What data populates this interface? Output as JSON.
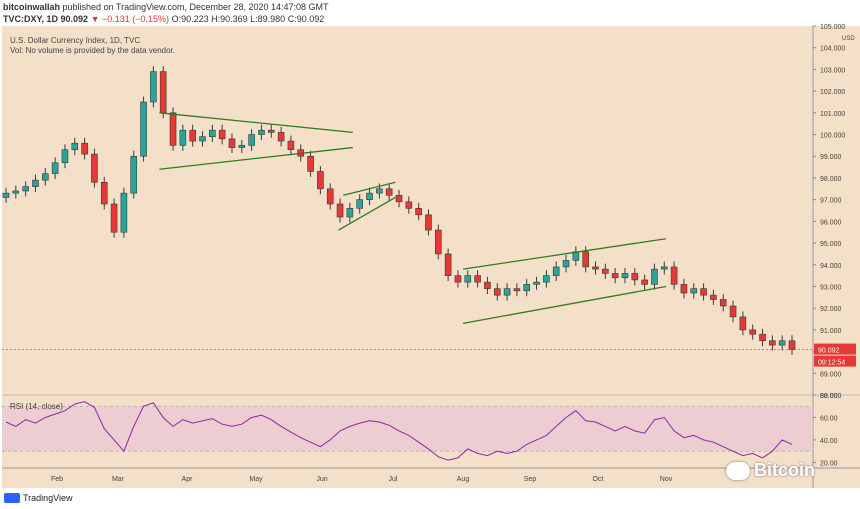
{
  "header": {
    "author": "bitcoinwallah",
    "published": "published on TradingView.com, December 28, 2020 14:47:08 GMT",
    "symbol": "TVC:DXY, 1D",
    "last": "90.092",
    "change": "▼ −0.131 (−0.15%)",
    "open": "O:90.223",
    "high": "H:90.369",
    "low": "L:89.980",
    "close": "C:90.092"
  },
  "legend": {
    "title": "U.S. Dollar Currency Index, 1D, TVC",
    "volume_note": "Vol: No volume is provided by the data vendor."
  },
  "rsi": {
    "label": "RSI (14, close)"
  },
  "price_tag": {
    "price": "90.092",
    "countdown": "09:12:54"
  },
  "footer": {
    "brand": "TradingView"
  },
  "watermark": {
    "text": "Bitcoin"
  },
  "colors": {
    "background": "#f4dfc9",
    "up": "#26a69a",
    "down": "#e53935",
    "candle": "#3a3a3a",
    "trendline": "#2e7d1e",
    "rsi_line": "#8e24aa",
    "rsi_band": "#e8c4d4",
    "price_tag": "#e53935"
  },
  "chart_data": [
    {
      "type": "candlestick",
      "title": "U.S. Dollar Currency Index, 1D, TVC",
      "ylabel": "USD",
      "ylim": [
        88,
        105
      ],
      "y_ticks": [
        88,
        89,
        90,
        91,
        92,
        93,
        94,
        95,
        96,
        97,
        98,
        99,
        100,
        101,
        102,
        103,
        104,
        105
      ],
      "y_tick_labels": [
        "88.000",
        "89.000",
        "90.000",
        "91.000",
        "92.000",
        "93.000",
        "94.000",
        "95.000",
        "96.000",
        "97.000",
        "98.000",
        "99.000",
        "100.000",
        "101.000",
        "102.000",
        "103.000",
        "104.000",
        "105.000"
      ],
      "x_tick_labels": [
        "Feb",
        "Mar",
        "Apr",
        "May",
        "Jun",
        "Jul",
        "Aug",
        "Sep",
        "Oct",
        "Nov"
      ],
      "close_approx": [
        97.3,
        97.4,
        97.6,
        97.9,
        98.2,
        98.7,
        99.3,
        99.6,
        99.1,
        97.8,
        96.8,
        95.5,
        97.3,
        99.0,
        101.5,
        102.9,
        101.0,
        99.5,
        100.2,
        99.7,
        99.9,
        100.2,
        99.8,
        99.4,
        99.5,
        100.0,
        100.2,
        100.1,
        99.7,
        99.3,
        99.0,
        98.3,
        97.5,
        96.8,
        96.2,
        96.6,
        97.0,
        97.3,
        97.5,
        97.2,
        96.9,
        96.6,
        96.3,
        95.6,
        94.5,
        93.5,
        93.2,
        93.5,
        93.2,
        92.9,
        92.6,
        92.9,
        92.8,
        93.1,
        93.2,
        93.5,
        93.9,
        94.2,
        94.6,
        93.9,
        93.8,
        93.6,
        93.4,
        93.6,
        93.3,
        93.1,
        93.8,
        93.9,
        93.1,
        92.7,
        92.9,
        92.6,
        92.4,
        92.1,
        91.6,
        91.0,
        90.8,
        90.5,
        90.3,
        90.5,
        90.09
      ],
      "current_price": 90.092,
      "trendlines": [
        {
          "name": "pennant upper",
          "from": [
            "Mar 19",
            101.0
          ],
          "to": [
            "Jun 14",
            100.1
          ]
        },
        {
          "name": "pennant lower",
          "from": [
            "Mar 19",
            98.4
          ],
          "to": [
            "Jun 14",
            99.4
          ]
        },
        {
          "name": "rising wedge upper",
          "from": [
            "Jun 10",
            97.2
          ],
          "to": [
            "Jul 2",
            97.8
          ]
        },
        {
          "name": "rising wedge lower",
          "from": [
            "Jun 8",
            95.6
          ],
          "to": [
            "Jul 2",
            97.1
          ]
        },
        {
          "name": "channel upper",
          "from": [
            "Aug 1",
            93.8
          ],
          "to": [
            "Nov 1",
            95.2
          ]
        },
        {
          "name": "channel lower",
          "from": [
            "Aug 1",
            91.3
          ],
          "to": [
            "Nov 1",
            93.0
          ]
        }
      ]
    },
    {
      "type": "line",
      "title": "RSI (14, close)",
      "ylim": [
        15,
        80
      ],
      "y_ticks": [
        20,
        40,
        60,
        80
      ],
      "y_tick_labels": [
        "20.00",
        "40.00",
        "60.00",
        "80.00"
      ],
      "band": [
        30,
        70
      ],
      "values_approx": [
        56,
        52,
        58,
        55,
        60,
        63,
        66,
        72,
        74,
        69,
        50,
        40,
        30,
        52,
        70,
        73,
        60,
        52,
        58,
        55,
        57,
        59,
        54,
        52,
        54,
        60,
        62,
        58,
        52,
        47,
        42,
        38,
        34,
        40,
        48,
        52,
        55,
        57,
        56,
        53,
        48,
        44,
        38,
        32,
        25,
        22,
        24,
        32,
        28,
        26,
        30,
        28,
        30,
        36,
        40,
        44,
        52,
        60,
        66,
        57,
        56,
        52,
        48,
        52,
        48,
        46,
        58,
        60,
        48,
        42,
        44,
        40,
        38,
        34,
        30,
        26,
        28,
        24,
        30,
        40,
        36
      ]
    }
  ]
}
